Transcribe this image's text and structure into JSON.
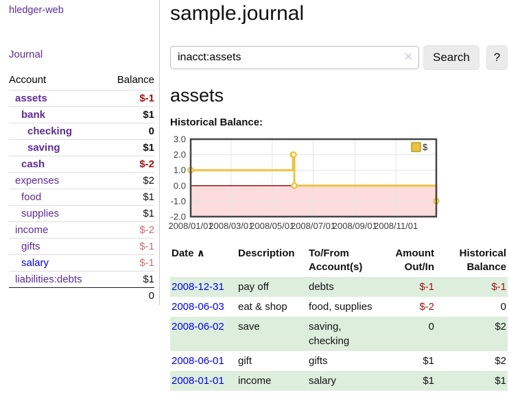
{
  "app": {
    "brand": "hledger-web"
  },
  "nav": {
    "journal": "Journal"
  },
  "sidebar": {
    "header": {
      "account": "Account",
      "balance": "Balance"
    },
    "accounts": [
      {
        "name": "assets",
        "balance": "$-1",
        "depth": 1,
        "bold": true,
        "amount_style": "neg-strong"
      },
      {
        "name": "bank",
        "balance": "$1",
        "depth": 2,
        "bold": true,
        "amount_style": "pos"
      },
      {
        "name": "checking",
        "balance": "0",
        "depth": 3,
        "bold": true,
        "amount_style": "pos"
      },
      {
        "name": "saving",
        "balance": "$1",
        "depth": 3,
        "bold": true,
        "amount_style": "pos"
      },
      {
        "name": "cash",
        "balance": "$-2",
        "depth": 2,
        "bold": true,
        "amount_style": "neg-strong"
      },
      {
        "name": "expenses",
        "balance": "$2",
        "depth": 1,
        "bold": false,
        "amount_style": "pos"
      },
      {
        "name": "food",
        "balance": "$1",
        "depth": 2,
        "bold": false,
        "amount_style": "pos"
      },
      {
        "name": "supplies",
        "balance": "$1",
        "depth": 2,
        "bold": false,
        "amount_style": "pos"
      },
      {
        "name": "income",
        "balance": "$-2",
        "depth": 1,
        "bold": false,
        "amount_style": "neg-soft"
      },
      {
        "name": "gifts",
        "balance": "$-1",
        "depth": 2,
        "bold": false,
        "amount_style": "neg-soft"
      },
      {
        "name": "salary",
        "balance": "$-1",
        "depth": 2,
        "bold": false,
        "amount_style": "neg-soft",
        "link_style": "blue"
      },
      {
        "name": "liabilities:debts",
        "balance": "$1",
        "depth": 1,
        "bold": false,
        "amount_style": "pos"
      }
    ],
    "total": "0"
  },
  "header": {
    "title": "sample.journal"
  },
  "search": {
    "value": "inacct:assets",
    "clear_icon": "✕",
    "button_label": "Search",
    "help_label": "?"
  },
  "account_page": {
    "heading": "assets",
    "chart_label": "Historical Balance:"
  },
  "chart_data": {
    "type": "line",
    "style": "steps",
    "title": "Historical Balance",
    "xlabel": "",
    "ylabel": "",
    "xlim_days": [
      0,
      365
    ],
    "ylim": [
      -2,
      3
    ],
    "grid": true,
    "legend": {
      "label": "$",
      "position": "top-right"
    },
    "colors": {
      "line": "#edc240",
      "marker_fill": "#ffffff",
      "legend_border": "#b89b2e",
      "negative_fill": "#fcdcdc",
      "zero_line": "#8b0000",
      "gridline": "#e4e4e4",
      "border": "#444444",
      "tick_text": "#3d3d3d"
    },
    "yticks": [
      {
        "v": 3,
        "label": "3.0"
      },
      {
        "v": 2,
        "label": "2.0"
      },
      {
        "v": 1,
        "label": "1.0"
      },
      {
        "v": 0,
        "label": "0.0"
      },
      {
        "v": -1,
        "label": "-1.0"
      },
      {
        "v": -2,
        "label": "-2.0"
      }
    ],
    "xticks": [
      {
        "day": 0,
        "label": "2008/01/01"
      },
      {
        "day": 60,
        "label": "2008/03/01"
      },
      {
        "day": 121,
        "label": "2008/05/01"
      },
      {
        "day": 182,
        "label": "2008/07/01"
      },
      {
        "day": 244,
        "label": "2008/09/01"
      },
      {
        "day": 305,
        "label": "2008/11/01"
      }
    ],
    "series": [
      {
        "name": "$",
        "points": [
          {
            "date": "2008-01-01",
            "day": 0,
            "value": 1
          },
          {
            "date": "2008-06-01",
            "day": 152,
            "value": 2
          },
          {
            "date": "2008-06-02",
            "day": 153,
            "value": 2
          },
          {
            "date": "2008-06-03",
            "day": 154,
            "value": 0
          },
          {
            "date": "2008-12-31",
            "day": 365,
            "value": -1
          }
        ]
      }
    ]
  },
  "register": {
    "columns": [
      {
        "label": "Date",
        "sort_icon": "∧"
      },
      {
        "label": "Description"
      },
      {
        "label": "To/From Account(s)"
      },
      {
        "label": "Amount Out/In"
      },
      {
        "label": "Historical Balance"
      }
    ],
    "rows": [
      {
        "date": "2008-12-31",
        "description": "pay off",
        "accounts": "debts",
        "amount": "$-1",
        "amount_style": "neg-strong",
        "balance": "$-1",
        "balance_style": "neg-strong"
      },
      {
        "date": "2008-06-03",
        "description": "eat & shop",
        "accounts": "food, supplies",
        "amount": "$-2",
        "amount_style": "neg-strong",
        "balance": "0",
        "balance_style": "pos"
      },
      {
        "date": "2008-06-02",
        "description": "save",
        "accounts": "saving, checking",
        "amount": "0",
        "amount_style": "pos",
        "balance": "$2",
        "balance_style": "pos"
      },
      {
        "date": "2008-06-01",
        "description": "gift",
        "accounts": "gifts",
        "amount": "$1",
        "amount_style": "pos",
        "balance": "$2",
        "balance_style": "pos"
      },
      {
        "date": "2008-01-01",
        "description": "income",
        "accounts": "salary",
        "amount": "$1",
        "amount_style": "pos",
        "balance": "$1",
        "balance_style": "pos"
      }
    ]
  }
}
